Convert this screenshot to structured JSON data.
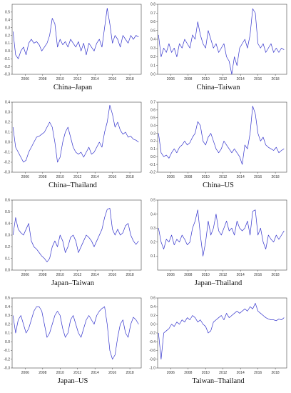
{
  "chart_data": [
    {
      "type": "line",
      "title": "China–Japan",
      "color": "#3333cc",
      "xlim": [
        2004.5,
        2019.3
      ],
      "ylim": [
        -0.3,
        0.6
      ],
      "yticks": [
        -0.3,
        -0.2,
        -0.1,
        0.0,
        0.1,
        0.2,
        0.3,
        0.4,
        0.5
      ],
      "xticks": [
        2006,
        2008,
        2010,
        2012,
        2014,
        2016,
        2018
      ],
      "x": [
        2004.6,
        2004.9,
        2005.2,
        2005.5,
        2005.8,
        2006.1,
        2006.4,
        2006.7,
        2007.0,
        2007.3,
        2007.6,
        2007.9,
        2008.2,
        2008.5,
        2008.8,
        2009.1,
        2009.4,
        2009.7,
        2010.0,
        2010.3,
        2010.6,
        2010.9,
        2011.2,
        2011.5,
        2011.8,
        2012.1,
        2012.4,
        2012.7,
        2013.0,
        2013.3,
        2013.6,
        2013.9,
        2014.2,
        2014.5,
        2014.8,
        2015.1,
        2015.4,
        2015.7,
        2016.0,
        2016.3,
        2016.6,
        2016.9,
        2017.2,
        2017.5,
        2017.8,
        2018.1,
        2018.4,
        2018.7,
        2019.0
      ],
      "y": [
        0.25,
        -0.05,
        -0.1,
        0.0,
        0.05,
        -0.05,
        0.1,
        0.15,
        0.1,
        0.12,
        0.08,
        0.0,
        0.05,
        0.1,
        0.2,
        0.42,
        0.35,
        0.05,
        0.15,
        0.08,
        0.12,
        0.05,
        0.15,
        0.1,
        0.05,
        0.12,
        0.0,
        0.1,
        -0.05,
        0.1,
        0.05,
        0.0,
        0.1,
        0.15,
        0.05,
        0.3,
        0.55,
        0.35,
        0.1,
        0.2,
        0.15,
        0.05,
        0.2,
        0.15,
        0.1,
        0.2,
        0.15,
        0.2,
        0.18
      ]
    },
    {
      "type": "line",
      "title": "China–Taiwan",
      "color": "#3333cc",
      "xlim": [
        2004.5,
        2019.3
      ],
      "ylim": [
        0.0,
        0.8
      ],
      "yticks": [
        0.0,
        0.1,
        0.2,
        0.3,
        0.4,
        0.5,
        0.6,
        0.7,
        0.8
      ],
      "xticks": [
        2006,
        2008,
        2010,
        2012,
        2014,
        2016,
        2018
      ],
      "x": [
        2004.6,
        2004.9,
        2005.2,
        2005.5,
        2005.8,
        2006.1,
        2006.4,
        2006.7,
        2007.0,
        2007.3,
        2007.6,
        2007.9,
        2008.2,
        2008.5,
        2008.8,
        2009.1,
        2009.4,
        2009.7,
        2010.0,
        2010.3,
        2010.6,
        2010.9,
        2011.2,
        2011.5,
        2011.8,
        2012.1,
        2012.4,
        2012.7,
        2013.0,
        2013.3,
        2013.6,
        2013.9,
        2014.2,
        2014.5,
        2014.8,
        2015.1,
        2015.4,
        2015.7,
        2016.0,
        2016.3,
        2016.6,
        2016.9,
        2017.2,
        2017.5,
        2017.8,
        2018.1,
        2018.4,
        2018.7,
        2019.0
      ],
      "y": [
        0.45,
        0.2,
        0.3,
        0.25,
        0.35,
        0.25,
        0.3,
        0.2,
        0.35,
        0.3,
        0.4,
        0.35,
        0.3,
        0.45,
        0.4,
        0.6,
        0.45,
        0.35,
        0.3,
        0.5,
        0.4,
        0.3,
        0.35,
        0.25,
        0.3,
        0.35,
        0.2,
        0.15,
        0.0,
        0.2,
        0.1,
        0.3,
        0.35,
        0.4,
        0.3,
        0.45,
        0.75,
        0.7,
        0.35,
        0.3,
        0.35,
        0.25,
        0.3,
        0.35,
        0.25,
        0.3,
        0.25,
        0.3,
        0.28
      ]
    },
    {
      "type": "line",
      "title": "China–Thailand",
      "color": "#3333cc",
      "xlim": [
        2004.5,
        2019.3
      ],
      "ylim": [
        -0.3,
        0.4
      ],
      "yticks": [
        -0.3,
        -0.2,
        -0.1,
        0.0,
        0.1,
        0.2,
        0.3,
        0.4
      ],
      "xticks": [
        2006,
        2008,
        2010,
        2012,
        2014,
        2016,
        2018
      ],
      "x": [
        2004.6,
        2004.9,
        2005.2,
        2005.5,
        2005.8,
        2006.1,
        2006.4,
        2006.7,
        2007.0,
        2007.3,
        2007.6,
        2007.9,
        2008.2,
        2008.5,
        2008.8,
        2009.1,
        2009.4,
        2009.7,
        2010.0,
        2010.3,
        2010.6,
        2010.9,
        2011.2,
        2011.5,
        2011.8,
        2012.1,
        2012.4,
        2012.7,
        2013.0,
        2013.3,
        2013.6,
        2013.9,
        2014.2,
        2014.5,
        2014.8,
        2015.1,
        2015.4,
        2015.7,
        2016.0,
        2016.3,
        2016.6,
        2016.9,
        2017.2,
        2017.5,
        2017.8,
        2018.1,
        2018.4,
        2018.7,
        2019.0
      ],
      "y": [
        0.15,
        -0.05,
        -0.1,
        -0.15,
        -0.2,
        -0.18,
        -0.1,
        -0.05,
        0.0,
        0.05,
        0.06,
        0.08,
        0.1,
        0.15,
        0.2,
        0.15,
        0.0,
        -0.2,
        -0.15,
        0.0,
        0.1,
        0.15,
        0.05,
        -0.05,
        -0.1,
        -0.12,
        -0.1,
        -0.15,
        -0.1,
        -0.05,
        -0.12,
        -0.1,
        -0.05,
        0.0,
        -0.05,
        0.1,
        0.2,
        0.37,
        0.28,
        0.15,
        0.2,
        0.12,
        0.08,
        0.1,
        0.05,
        0.06,
        0.03,
        0.02,
        0.0
      ]
    },
    {
      "type": "line",
      "title": "China–US",
      "color": "#3333cc",
      "xlim": [
        2004.5,
        2019.3
      ],
      "ylim": [
        -0.2,
        0.7
      ],
      "yticks": [
        -0.2,
        -0.1,
        0.0,
        0.1,
        0.2,
        0.3,
        0.4,
        0.5,
        0.6,
        0.7
      ],
      "xticks": [
        2006,
        2008,
        2010,
        2012,
        2014,
        2016,
        2018
      ],
      "x": [
        2004.6,
        2004.9,
        2005.2,
        2005.5,
        2005.8,
        2006.1,
        2006.4,
        2006.7,
        2007.0,
        2007.3,
        2007.6,
        2007.9,
        2008.2,
        2008.5,
        2008.8,
        2009.1,
        2009.4,
        2009.7,
        2010.0,
        2010.3,
        2010.6,
        2010.9,
        2011.2,
        2011.5,
        2011.8,
        2012.1,
        2012.4,
        2012.7,
        2013.0,
        2013.3,
        2013.6,
        2013.9,
        2014.2,
        2014.5,
        2014.8,
        2015.1,
        2015.4,
        2015.7,
        2016.0,
        2016.3,
        2016.6,
        2016.9,
        2017.2,
        2017.5,
        2017.8,
        2018.1,
        2018.4,
        2018.7,
        2019.0
      ],
      "y": [
        0.3,
        0.05,
        0.0,
        0.02,
        -0.02,
        0.05,
        0.1,
        0.05,
        0.12,
        0.15,
        0.2,
        0.15,
        0.18,
        0.25,
        0.3,
        0.45,
        0.4,
        0.2,
        0.15,
        0.25,
        0.3,
        0.2,
        0.1,
        0.05,
        0.1,
        0.2,
        0.15,
        0.1,
        0.05,
        0.1,
        0.05,
        0.0,
        -0.1,
        0.15,
        0.1,
        0.3,
        0.65,
        0.55,
        0.3,
        0.2,
        0.25,
        0.15,
        0.12,
        0.1,
        0.08,
        0.12,
        0.05,
        0.08,
        0.1
      ]
    },
    {
      "type": "line",
      "title": "Japan–Taiwan",
      "color": "#3333cc",
      "xlim": [
        2004.5,
        2019.3
      ],
      "ylim": [
        0.0,
        0.6
      ],
      "yticks": [
        0.0,
        0.1,
        0.2,
        0.3,
        0.4,
        0.5,
        0.6
      ],
      "xticks": [
        2006,
        2008,
        2010,
        2012,
        2014,
        2016,
        2018
      ],
      "x": [
        2004.6,
        2004.9,
        2005.2,
        2005.5,
        2005.8,
        2006.1,
        2006.4,
        2006.7,
        2007.0,
        2007.3,
        2007.6,
        2007.9,
        2008.2,
        2008.5,
        2008.8,
        2009.1,
        2009.4,
        2009.7,
        2010.0,
        2010.3,
        2010.6,
        2010.9,
        2011.2,
        2011.5,
        2011.8,
        2012.1,
        2012.4,
        2012.7,
        2013.0,
        2013.3,
        2013.6,
        2013.9,
        2014.2,
        2014.5,
        2014.8,
        2015.1,
        2015.4,
        2015.7,
        2016.0,
        2016.3,
        2016.6,
        2016.9,
        2017.2,
        2017.5,
        2017.8,
        2018.1,
        2018.4,
        2018.7,
        2019.0
      ],
      "y": [
        0.3,
        0.45,
        0.35,
        0.32,
        0.3,
        0.35,
        0.4,
        0.25,
        0.2,
        0.18,
        0.15,
        0.12,
        0.1,
        0.07,
        0.1,
        0.2,
        0.25,
        0.2,
        0.3,
        0.25,
        0.15,
        0.2,
        0.28,
        0.3,
        0.25,
        0.15,
        0.2,
        0.25,
        0.3,
        0.28,
        0.25,
        0.2,
        0.25,
        0.3,
        0.35,
        0.45,
        0.52,
        0.53,
        0.35,
        0.3,
        0.35,
        0.3,
        0.32,
        0.38,
        0.4,
        0.3,
        0.25,
        0.22,
        0.25
      ]
    },
    {
      "type": "line",
      "title": "Japan–Thailand",
      "color": "#3333cc",
      "xlim": [
        2004.5,
        2019.3
      ],
      "ylim": [
        0.0,
        0.5
      ],
      "yticks": [
        0.1,
        0.2,
        0.3,
        0.4,
        0.5
      ],
      "xticks": [
        2006,
        2008,
        2010,
        2012,
        2014,
        2016,
        2018
      ],
      "x": [
        2004.6,
        2004.9,
        2005.2,
        2005.5,
        2005.8,
        2006.1,
        2006.4,
        2006.7,
        2007.0,
        2007.3,
        2007.6,
        2007.9,
        2008.2,
        2008.5,
        2008.8,
        2009.1,
        2009.4,
        2009.7,
        2010.0,
        2010.3,
        2010.6,
        2010.9,
        2011.2,
        2011.5,
        2011.8,
        2012.1,
        2012.4,
        2012.7,
        2013.0,
        2013.3,
        2013.6,
        2013.9,
        2014.2,
        2014.5,
        2014.8,
        2015.1,
        2015.4,
        2015.7,
        2016.0,
        2016.3,
        2016.6,
        2016.9,
        2017.2,
        2017.5,
        2017.8,
        2018.1,
        2018.4,
        2018.7,
        2019.0
      ],
      "y": [
        0.3,
        0.2,
        0.15,
        0.22,
        0.2,
        0.25,
        0.18,
        0.22,
        0.2,
        0.25,
        0.22,
        0.18,
        0.2,
        0.3,
        0.35,
        0.43,
        0.25,
        0.1,
        0.2,
        0.35,
        0.25,
        0.3,
        0.4,
        0.28,
        0.25,
        0.3,
        0.35,
        0.28,
        0.3,
        0.25,
        0.35,
        0.3,
        0.28,
        0.3,
        0.35,
        0.25,
        0.42,
        0.43,
        0.25,
        0.3,
        0.2,
        0.15,
        0.25,
        0.22,
        0.2,
        0.25,
        0.22,
        0.25,
        0.28
      ]
    },
    {
      "type": "line",
      "title": "Japan–US",
      "color": "#3333cc",
      "xlim": [
        2004.5,
        2019.3
      ],
      "ylim": [
        -0.3,
        0.5
      ],
      "yticks": [
        -0.3,
        -0.2,
        -0.1,
        0.0,
        0.1,
        0.2,
        0.3,
        0.4,
        0.5
      ],
      "xticks": [
        2006,
        2008,
        2010,
        2012,
        2014,
        2016,
        2018
      ],
      "x": [
        2004.6,
        2004.9,
        2005.2,
        2005.5,
        2005.8,
        2006.1,
        2006.4,
        2006.7,
        2007.0,
        2007.3,
        2007.6,
        2007.9,
        2008.2,
        2008.5,
        2008.8,
        2009.1,
        2009.4,
        2009.7,
        2010.0,
        2010.3,
        2010.6,
        2010.9,
        2011.2,
        2011.5,
        2011.8,
        2012.1,
        2012.4,
        2012.7,
        2013.0,
        2013.3,
        2013.6,
        2013.9,
        2014.2,
        2014.5,
        2014.8,
        2015.1,
        2015.4,
        2015.7,
        2016.0,
        2016.3,
        2016.6,
        2016.9,
        2017.2,
        2017.5,
        2017.8,
        2018.1,
        2018.4,
        2018.7,
        2019.0
      ],
      "y": [
        0.3,
        0.1,
        0.25,
        0.3,
        0.2,
        0.1,
        0.15,
        0.25,
        0.35,
        0.4,
        0.4,
        0.35,
        0.2,
        0.05,
        0.1,
        0.2,
        0.3,
        0.35,
        0.3,
        0.15,
        0.05,
        0.1,
        0.25,
        0.3,
        0.2,
        0.1,
        0.05,
        0.15,
        0.25,
        0.3,
        0.25,
        0.2,
        0.3,
        0.35,
        0.38,
        0.4,
        0.2,
        -0.1,
        -0.2,
        -0.15,
        0.05,
        0.2,
        0.25,
        0.1,
        0.05,
        0.2,
        0.28,
        0.25,
        0.2
      ]
    },
    {
      "type": "line",
      "title": "Taiwan–Thailand",
      "color": "#3333cc",
      "xlim": [
        2004.5,
        2019.3
      ],
      "ylim": [
        -1.0,
        0.6
      ],
      "yticks": [
        -1.0,
        -0.8,
        -0.6,
        -0.4,
        -0.2,
        0.0,
        0.2,
        0.4,
        0.6
      ],
      "xticks": [
        2006,
        2008,
        2010,
        2012,
        2014,
        2016,
        2018
      ],
      "x": [
        2004.6,
        2004.9,
        2005.2,
        2005.5,
        2005.8,
        2006.1,
        2006.4,
        2006.7,
        2007.0,
        2007.3,
        2007.6,
        2007.9,
        2008.2,
        2008.5,
        2008.8,
        2009.1,
        2009.4,
        2009.7,
        2010.0,
        2010.3,
        2010.6,
        2010.9,
        2011.2,
        2011.5,
        2011.8,
        2012.1,
        2012.4,
        2012.7,
        2013.0,
        2013.3,
        2013.6,
        2013.9,
        2014.2,
        2014.5,
        2014.8,
        2015.1,
        2015.4,
        2015.7,
        2016.0,
        2016.3,
        2016.6,
        2016.9,
        2017.2,
        2017.5,
        2017.8,
        2018.1,
        2018.4,
        2018.7,
        2019.0
      ],
      "y": [
        -0.2,
        -0.8,
        -0.2,
        -0.15,
        -0.1,
        0.0,
        -0.05,
        0.05,
        0.0,
        0.1,
        0.05,
        0.15,
        0.1,
        0.2,
        0.15,
        0.05,
        0.1,
        0.0,
        -0.05,
        -0.2,
        -0.15,
        0.05,
        0.1,
        0.15,
        0.2,
        0.1,
        0.25,
        0.15,
        0.2,
        0.25,
        0.3,
        0.25,
        0.3,
        0.35,
        0.3,
        0.4,
        0.35,
        0.48,
        0.3,
        0.25,
        0.2,
        0.15,
        0.12,
        0.1,
        0.1,
        0.08,
        0.12,
        0.1,
        0.15
      ]
    }
  ]
}
